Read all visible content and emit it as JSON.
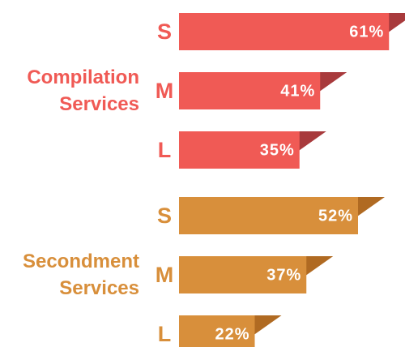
{
  "chart_data": {
    "type": "ribbon-bar",
    "groups": [
      {
        "name": "Compilation Services",
        "color": "#f05a55",
        "fold_color": "#a83a3c",
        "categories": [
          "S",
          "M",
          "L"
        ],
        "values": [
          61,
          41,
          35
        ],
        "value_labels": [
          "61%",
          "41%",
          "35%"
        ]
      },
      {
        "name": "Secondment Services",
        "color": "#d88f3b",
        "fold_color": "#b06a22",
        "categories": [
          "S",
          "M",
          "L"
        ],
        "values": [
          52,
          37,
          22
        ],
        "value_labels": [
          "52%",
          "37%",
          "22%"
        ]
      }
    ]
  }
}
